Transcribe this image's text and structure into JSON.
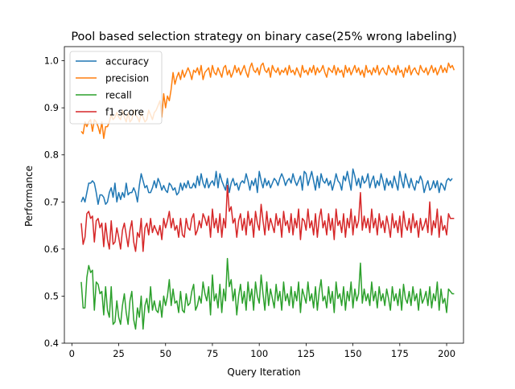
{
  "chart_data": {
    "type": "line",
    "title": "Pool based selection strategy on binary case(25% wrong labeling)",
    "xlabel": "Query Iteration",
    "ylabel": "Performance",
    "xlim": [
      -4,
      209
    ],
    "ylim": [
      0.4,
      1.03
    ],
    "xticks": [
      0,
      25,
      50,
      75,
      100,
      125,
      150,
      175,
      200
    ],
    "yticks": [
      0.4,
      0.5,
      0.6,
      0.7,
      0.8,
      0.9,
      1.0
    ],
    "ytick_labels": [
      "0.4",
      "0.5",
      "0.6",
      "0.7",
      "0.8",
      "0.9",
      "1.0"
    ],
    "grid": false,
    "legend_position": "top-left",
    "x_start": 5,
    "x_end": 198,
    "series": [
      {
        "name": "accuracy",
        "color": "#1f77b4",
        "values": [
          0.7,
          0.71,
          0.7,
          0.72,
          0.74,
          0.74,
          0.745,
          0.74,
          0.72,
          0.695,
          0.715,
          0.715,
          0.71,
          0.695,
          0.7,
          0.72,
          0.73,
          0.71,
          0.74,
          0.7,
          0.72,
          0.705,
          0.72,
          0.71,
          0.74,
          0.715,
          0.72,
          0.72,
          0.73,
          0.72,
          0.7,
          0.735,
          0.76,
          0.745,
          0.73,
          0.735,
          0.72,
          0.72,
          0.73,
          0.745,
          0.73,
          0.75,
          0.74,
          0.725,
          0.735,
          0.725,
          0.72,
          0.74,
          0.735,
          0.725,
          0.73,
          0.715,
          0.72,
          0.74,
          0.725,
          0.74,
          0.73,
          0.745,
          0.73,
          0.73,
          0.74,
          0.73,
          0.755,
          0.735,
          0.76,
          0.74,
          0.73,
          0.75,
          0.73,
          0.74,
          0.745,
          0.735,
          0.765,
          0.73,
          0.76,
          0.745,
          0.735,
          0.725,
          0.75,
          0.72,
          0.74,
          0.75,
          0.735,
          0.74,
          0.725,
          0.74,
          0.745,
          0.74,
          0.76,
          0.745,
          0.725,
          0.745,
          0.735,
          0.75,
          0.72,
          0.765,
          0.745,
          0.73,
          0.75,
          0.735,
          0.745,
          0.73,
          0.74,
          0.75,
          0.745,
          0.735,
          0.75,
          0.76,
          0.75,
          0.735,
          0.745,
          0.75,
          0.74,
          0.76,
          0.745,
          0.735,
          0.745,
          0.755,
          0.725,
          0.765,
          0.76,
          0.735,
          0.75,
          0.765,
          0.745,
          0.725,
          0.755,
          0.73,
          0.76,
          0.745,
          0.74,
          0.75,
          0.735,
          0.745,
          0.725,
          0.74,
          0.76,
          0.745,
          0.74,
          0.725,
          0.755,
          0.745,
          0.765,
          0.745,
          0.725,
          0.77,
          0.755,
          0.735,
          0.75,
          0.73,
          0.755,
          0.74,
          0.745,
          0.76,
          0.73,
          0.745,
          0.755,
          0.73,
          0.745,
          0.735,
          0.76,
          0.745,
          0.725,
          0.75,
          0.735,
          0.745,
          0.73,
          0.755,
          0.74,
          0.725,
          0.765,
          0.745,
          0.73,
          0.76,
          0.745,
          0.73,
          0.75,
          0.735,
          0.725,
          0.745,
          0.74,
          0.755,
          0.745,
          0.72,
          0.735,
          0.745,
          0.725,
          0.73,
          0.745,
          0.73,
          0.745,
          0.72,
          0.74,
          0.735,
          0.725,
          0.745,
          0.75,
          0.745,
          0.75
        ]
      },
      {
        "name": "precision",
        "color": "#ff7f0e",
        "values": [
          0.85,
          0.845,
          0.87,
          0.86,
          0.87,
          0.875,
          0.85,
          0.875,
          0.87,
          0.86,
          0.845,
          0.87,
          0.835,
          0.86,
          0.86,
          0.87,
          0.885,
          0.875,
          0.88,
          0.89,
          0.88,
          0.875,
          0.895,
          0.88,
          0.87,
          0.89,
          0.87,
          0.875,
          0.895,
          0.885,
          0.88,
          0.87,
          0.89,
          0.88,
          0.87,
          0.875,
          0.895,
          0.885,
          0.875,
          0.89,
          0.895,
          0.905,
          0.915,
          0.88,
          0.93,
          0.9,
          0.925,
          0.915,
          0.94,
          0.975,
          0.95,
          0.965,
          0.975,
          0.96,
          0.98,
          0.965,
          0.975,
          0.985,
          0.975,
          0.96,
          0.98,
          0.975,
          0.985,
          0.97,
          0.99,
          0.96,
          0.975,
          0.98,
          0.985,
          0.965,
          0.99,
          0.975,
          0.97,
          0.985,
          0.975,
          0.965,
          0.985,
          0.99,
          0.97,
          0.98,
          0.965,
          0.975,
          0.99,
          0.975,
          0.985,
          0.97,
          0.98,
          0.99,
          0.975,
          0.965,
          0.985,
          0.995,
          0.98,
          0.975,
          0.985,
          0.97,
          0.99,
          0.995,
          0.98,
          0.975,
          0.985,
          0.965,
          0.99,
          0.98,
          0.975,
          0.985,
          0.97,
          0.98,
          0.975,
          0.985,
          0.97,
          0.99,
          0.975,
          0.98,
          0.97,
          0.985,
          0.975,
          0.965,
          0.99,
          0.975,
          0.98,
          0.97,
          0.985,
          0.975,
          0.99,
          0.97,
          0.985,
          0.975,
          0.98,
          0.99,
          0.975,
          0.965,
          0.985,
          0.98,
          0.975,
          0.99,
          0.97,
          0.985,
          0.975,
          0.98,
          0.965,
          0.99,
          0.975,
          0.985,
          0.97,
          0.98,
          0.99,
          0.975,
          0.985,
          0.97,
          0.98,
          0.965,
          0.99,
          0.975,
          0.98,
          0.97,
          0.985,
          0.975,
          0.99,
          0.97,
          0.98,
          0.985,
          0.975,
          0.97,
          0.99,
          0.98,
          0.975,
          0.985,
          0.97,
          0.99,
          0.975,
          0.98,
          0.965,
          0.985,
          0.975,
          0.99,
          0.97,
          0.98,
          0.985,
          0.975,
          0.97,
          0.99,
          0.98,
          0.975,
          0.985,
          0.97,
          0.98,
          0.99,
          0.975,
          0.985,
          0.97,
          0.98,
          0.99,
          0.975,
          0.985,
          0.975,
          0.995,
          0.985,
          0.99,
          0.98
        ]
      },
      {
        "name": "recall",
        "color": "#2ca02c",
        "values": [
          0.53,
          0.475,
          0.475,
          0.54,
          0.565,
          0.55,
          0.555,
          0.47,
          0.53,
          0.525,
          0.505,
          0.51,
          0.46,
          0.52,
          0.47,
          0.455,
          0.52,
          0.44,
          0.445,
          0.49,
          0.455,
          0.44,
          0.48,
          0.505,
          0.465,
          0.44,
          0.49,
          0.51,
          0.45,
          0.43,
          0.475,
          0.455,
          0.5,
          0.43,
          0.48,
          0.495,
          0.465,
          0.52,
          0.47,
          0.49,
          0.47,
          0.465,
          0.49,
          0.455,
          0.5,
          0.48,
          0.5,
          0.535,
          0.48,
          0.515,
          0.485,
          0.49,
          0.465,
          0.51,
          0.47,
          0.465,
          0.505,
          0.48,
          0.485,
          0.51,
          0.525,
          0.47,
          0.48,
          0.5,
          0.485,
          0.53,
          0.505,
          0.49,
          0.52,
          0.46,
          0.545,
          0.49,
          0.505,
          0.475,
          0.525,
          0.465,
          0.515,
          0.49,
          0.58,
          0.52,
          0.535,
          0.49,
          0.515,
          0.46,
          0.5,
          0.525,
          0.485,
          0.51,
          0.47,
          0.53,
          0.49,
          0.515,
          0.47,
          0.53,
          0.5,
          0.485,
          0.545,
          0.505,
          0.47,
          0.53,
          0.48,
          0.515,
          0.495,
          0.475,
          0.525,
          0.49,
          0.51,
          0.47,
          0.53,
          0.49,
          0.505,
          0.48,
          0.52,
          0.475,
          0.51,
          0.49,
          0.53,
          0.465,
          0.515,
          0.5,
          0.485,
          0.53,
          0.49,
          0.505,
          0.475,
          0.52,
          0.47,
          0.51,
          0.535,
          0.49,
          0.5,
          0.475,
          0.52,
          0.485,
          0.51,
          0.465,
          0.53,
          0.495,
          0.505,
          0.48,
          0.52,
          0.47,
          0.51,
          0.49,
          0.53,
          0.475,
          0.515,
          0.49,
          0.505,
          0.57,
          0.485,
          0.515,
          0.49,
          0.505,
          0.48,
          0.53,
          0.49,
          0.51,
          0.475,
          0.52,
          0.49,
          0.505,
          0.48,
          0.515,
          0.495,
          0.47,
          0.52,
          0.49,
          0.505,
          0.48,
          0.515,
          0.47,
          0.525,
          0.495,
          0.485,
          0.51,
          0.48,
          0.52,
          0.49,
          0.505,
          0.47,
          0.515,
          0.485,
          0.495,
          0.51,
          0.48,
          0.52,
          0.475,
          0.505,
          0.49,
          0.53,
          0.47,
          0.515,
          0.485,
          0.495,
          0.465,
          0.515,
          0.51,
          0.505,
          0.505
        ]
      },
      {
        "name": "f1 score",
        "color": "#d62728",
        "values": [
          0.655,
          0.61,
          0.625,
          0.675,
          0.68,
          0.665,
          0.67,
          0.615,
          0.66,
          0.665,
          0.645,
          0.655,
          0.605,
          0.655,
          0.62,
          0.6,
          0.66,
          0.61,
          0.615,
          0.645,
          0.625,
          0.6,
          0.64,
          0.655,
          0.63,
          0.605,
          0.64,
          0.66,
          0.615,
          0.595,
          0.635,
          0.625,
          0.665,
          0.595,
          0.645,
          0.655,
          0.63,
          0.665,
          0.635,
          0.65,
          0.64,
          0.63,
          0.65,
          0.62,
          0.665,
          0.645,
          0.66,
          0.68,
          0.645,
          0.665,
          0.64,
          0.65,
          0.625,
          0.665,
          0.63,
          0.625,
          0.665,
          0.645,
          0.64,
          0.665,
          0.675,
          0.63,
          0.64,
          0.66,
          0.645,
          0.675,
          0.665,
          0.65,
          0.67,
          0.625,
          0.685,
          0.645,
          0.665,
          0.635,
          0.675,
          0.625,
          0.665,
          0.645,
          0.735,
          0.68,
          0.69,
          0.655,
          0.665,
          0.625,
          0.66,
          0.675,
          0.64,
          0.665,
          0.63,
          0.68,
          0.65,
          0.665,
          0.625,
          0.68,
          0.655,
          0.64,
          0.695,
          0.66,
          0.63,
          0.68,
          0.64,
          0.665,
          0.65,
          0.635,
          0.675,
          0.65,
          0.665,
          0.625,
          0.68,
          0.65,
          0.66,
          0.635,
          0.675,
          0.63,
          0.665,
          0.645,
          0.685,
          0.62,
          0.665,
          0.66,
          0.64,
          0.685,
          0.645,
          0.66,
          0.63,
          0.675,
          0.625,
          0.665,
          0.685,
          0.645,
          0.66,
          0.63,
          0.675,
          0.64,
          0.665,
          0.62,
          0.685,
          0.65,
          0.66,
          0.635,
          0.675,
          0.625,
          0.665,
          0.645,
          0.685,
          0.63,
          0.67,
          0.645,
          0.66,
          0.72,
          0.64,
          0.67,
          0.645,
          0.665,
          0.635,
          0.685,
          0.645,
          0.665,
          0.63,
          0.675,
          0.645,
          0.66,
          0.635,
          0.67,
          0.65,
          0.625,
          0.675,
          0.645,
          0.66,
          0.635,
          0.67,
          0.625,
          0.68,
          0.65,
          0.64,
          0.665,
          0.635,
          0.675,
          0.645,
          0.66,
          0.625,
          0.665,
          0.64,
          0.65,
          0.665,
          0.635,
          0.7,
          0.63,
          0.66,
          0.645,
          0.685,
          0.625,
          0.67,
          0.64,
          0.65,
          0.63,
          0.675,
          0.665,
          0.665,
          0.665
        ]
      }
    ]
  }
}
